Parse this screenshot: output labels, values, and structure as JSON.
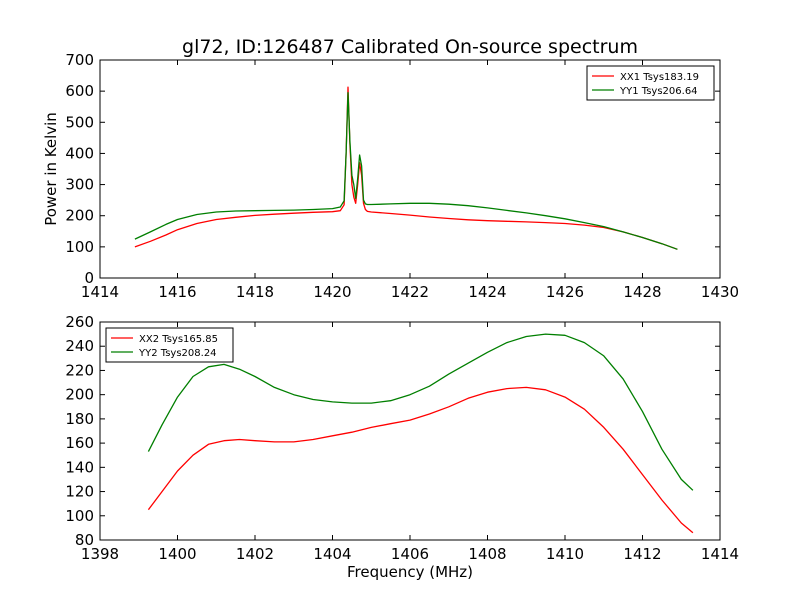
{
  "title": "gl72, ID:126487 Calibrated On-source spectrum",
  "colors": {
    "xx": "#ff0000",
    "yy": "#007f00",
    "axis": "#000000",
    "background": "#ffffff"
  },
  "chart_data": [
    {
      "type": "line",
      "title": "gl72, ID:126487 Calibrated On-source spectrum",
      "xlabel": "",
      "ylabel": "Power in Kelvin",
      "xlim": [
        1414,
        1430
      ],
      "ylim": [
        0,
        700
      ],
      "xticks": [
        "1414",
        "1416",
        "1418",
        "1420",
        "1422",
        "1424",
        "1426",
        "1428",
        "1430"
      ],
      "yticks": [
        "0",
        "100",
        "200",
        "300",
        "400",
        "500",
        "600",
        "700"
      ],
      "grid": false,
      "legend_position": "top-right",
      "series": [
        {
          "name": "XX1 Tsys183.19",
          "color": "#ff0000",
          "x": [
            1414.9,
            1415.3,
            1415.7,
            1416.0,
            1416.5,
            1417.0,
            1417.5,
            1418.0,
            1418.5,
            1419.0,
            1419.5,
            1420.0,
            1420.2,
            1420.3,
            1420.35,
            1420.4,
            1420.45,
            1420.5,
            1420.55,
            1420.6,
            1420.65,
            1420.7,
            1420.75,
            1420.8,
            1420.85,
            1420.9,
            1421.0,
            1421.5,
            1422.0,
            1422.5,
            1423.0,
            1423.5,
            1424.0,
            1424.5,
            1425.0,
            1425.5,
            1426.0,
            1426.5,
            1427.0,
            1427.5,
            1428.0,
            1428.5,
            1428.9
          ],
          "values": [
            100,
            118,
            138,
            155,
            175,
            188,
            195,
            201,
            205,
            208,
            211,
            213,
            216,
            235,
            400,
            613,
            430,
            300,
            260,
            240,
            300,
            370,
            330,
            240,
            220,
            214,
            212,
            207,
            202,
            196,
            191,
            187,
            184,
            182,
            180,
            178,
            175,
            170,
            162,
            148,
            130,
            110,
            92
          ]
        },
        {
          "name": "YY1 Tsys206.64",
          "color": "#007f00",
          "x": [
            1414.9,
            1415.3,
            1415.7,
            1416.0,
            1416.5,
            1417.0,
            1417.5,
            1418.0,
            1418.5,
            1419.0,
            1419.5,
            1420.0,
            1420.2,
            1420.3,
            1420.35,
            1420.4,
            1420.45,
            1420.5,
            1420.55,
            1420.6,
            1420.65,
            1420.7,
            1420.75,
            1420.8,
            1420.85,
            1420.9,
            1421.0,
            1421.5,
            1422.0,
            1422.5,
            1423.0,
            1423.5,
            1424.0,
            1424.5,
            1425.0,
            1425.5,
            1426.0,
            1426.5,
            1427.0,
            1427.5,
            1428.0,
            1428.5,
            1428.9
          ],
          "values": [
            125,
            148,
            172,
            188,
            204,
            212,
            215,
            216,
            217,
            218,
            220,
            223,
            228,
            248,
            400,
            595,
            440,
            330,
            300,
            255,
            320,
            395,
            360,
            250,
            238,
            236,
            236,
            238,
            240,
            240,
            237,
            232,
            225,
            217,
            209,
            200,
            190,
            178,
            165,
            148,
            130,
            110,
            92
          ]
        }
      ]
    },
    {
      "type": "line",
      "title": "",
      "xlabel": "Frequency (MHz)",
      "ylabel": "",
      "xlim": [
        1398,
        1414
      ],
      "ylim": [
        80,
        260
      ],
      "xticks": [
        "1398",
        "1400",
        "1402",
        "1404",
        "1406",
        "1408",
        "1410",
        "1412",
        "1414"
      ],
      "yticks": [
        "80",
        "100",
        "120",
        "140",
        "160",
        "180",
        "200",
        "220",
        "240",
        "260"
      ],
      "grid": false,
      "legend_position": "top-left",
      "series": [
        {
          "name": "XX2 Tsys165.85",
          "color": "#ff0000",
          "x": [
            1399.25,
            1399.6,
            1400.0,
            1400.4,
            1400.8,
            1401.2,
            1401.6,
            1402.0,
            1402.5,
            1403.0,
            1403.5,
            1404.0,
            1404.5,
            1405.0,
            1405.5,
            1406.0,
            1406.5,
            1407.0,
            1407.5,
            1408.0,
            1408.5,
            1409.0,
            1409.5,
            1410.0,
            1410.5,
            1411.0,
            1411.5,
            1412.0,
            1412.5,
            1413.0,
            1413.3
          ],
          "values": [
            105,
            120,
            137,
            150,
            159,
            162,
            163,
            162,
            161,
            161,
            163,
            166,
            169,
            173,
            176,
            179,
            184,
            190,
            197,
            202,
            205,
            206,
            204,
            198,
            188,
            173,
            155,
            134,
            113,
            94,
            86
          ]
        },
        {
          "name": "YY2 Tsys208.24",
          "color": "#007f00",
          "x": [
            1399.25,
            1399.6,
            1400.0,
            1400.4,
            1400.8,
            1401.2,
            1401.6,
            1402.0,
            1402.5,
            1403.0,
            1403.5,
            1404.0,
            1404.5,
            1405.0,
            1405.5,
            1406.0,
            1406.5,
            1407.0,
            1407.5,
            1408.0,
            1408.5,
            1409.0,
            1409.5,
            1410.0,
            1410.5,
            1411.0,
            1411.5,
            1412.0,
            1412.5,
            1413.0,
            1413.3
          ],
          "values": [
            153,
            175,
            198,
            215,
            223,
            225,
            221,
            215,
            206,
            200,
            196,
            194,
            193,
            193,
            195,
            200,
            207,
            217,
            226,
            235,
            243,
            248,
            250,
            249,
            243,
            232,
            213,
            186,
            155,
            130,
            121
          ]
        }
      ]
    }
  ]
}
